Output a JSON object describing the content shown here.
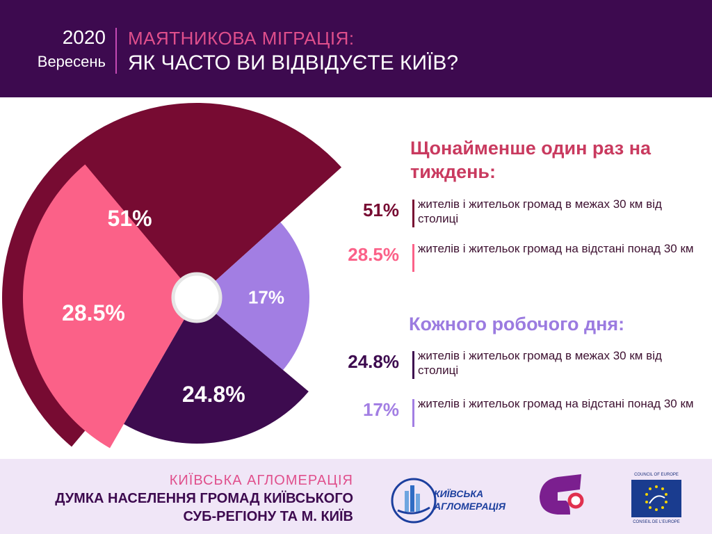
{
  "header": {
    "year": "2020",
    "month": "Вересень",
    "title_line1": "МАЯТНИКОВА МІГРАЦІЯ:",
    "title_line2": "ЯК ЧАСТО ВИ ВІДВІДУЄТЕ КИЇВ?"
  },
  "chart_data": {
    "type": "pie",
    "labels": [
      "51%",
      "17%",
      "24.8%",
      "28.5%"
    ],
    "values": [
      51,
      17,
      24.8,
      28.5
    ],
    "colors": [
      "#770b32",
      "#a27ee3",
      "#3d0b4f",
      "#fb6188"
    ]
  },
  "legend": {
    "weekly_heading": "Щонайменше один раз на тиждень:",
    "daily_heading": "Кожного робочого дня:",
    "items": [
      {
        "pct": "51%",
        "text": "жителів і жительок громад в межах 30 км від столиці",
        "color": "#770b32"
      },
      {
        "pct": "28.5%",
        "text": "жителів і жительок громад на відстані понад 30 км",
        "color": "#fb6188"
      },
      {
        "pct": "24.8%",
        "text": "жителів і жительок громад в межах 30 км від столиці",
        "color": "#3d0b4f"
      },
      {
        "pct": "17%",
        "text": "жителів і жительок громад на відстані понад 30 км",
        "color": "#a27ee3"
      }
    ]
  },
  "footer": {
    "line1": "КИЇВСЬКА АГЛОМЕРАЦІЯ",
    "line2": "ДУМКА НАСЕЛЕННЯ ГРОМАД КИЇВСЬКОГО",
    "line3": "СУБ-РЕГІОНУ ТА М. КИЇВ",
    "logo_kyiv_line1": "КИЇВСЬКА",
    "logo_kyiv_line2": "АГЛОМЕРАЦІЯ",
    "coe_top": "COUNCIL OF EUROPE",
    "coe_bottom": "CONSEIL DE L'EUROPE"
  }
}
